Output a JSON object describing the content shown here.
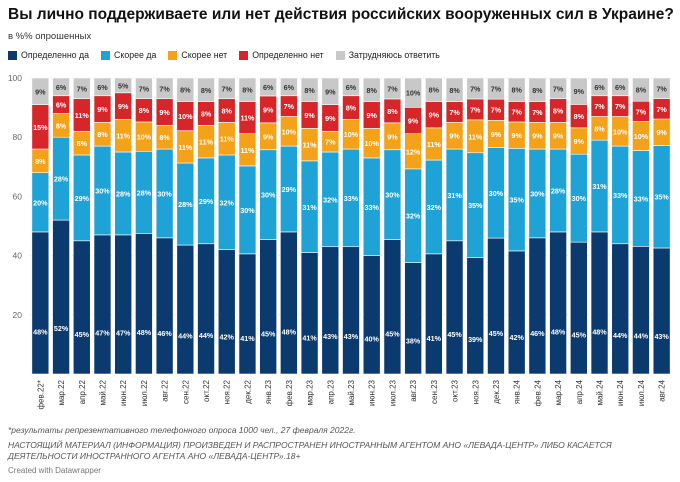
{
  "header": {
    "title": "Вы лично поддерживаете или нет действия российских вооруженных сил в Украине?",
    "subtitle": "в %% опрошенных"
  },
  "legend": [
    {
      "label": "Определенно да",
      "color": "#0b3a6e"
    },
    {
      "label": "Скорее да",
      "color": "#1fa2d6"
    },
    {
      "label": "Скорее нет",
      "color": "#f5a21b"
    },
    {
      "label": "Определенно нет",
      "color": "#d7262a"
    },
    {
      "label": "Затрудняюсь ответить",
      "color": "#c8c8c8"
    }
  ],
  "footer": {
    "note": "*результаты репрезентативного телефонного опроса 1000 чел., 27 февраля 2022г.",
    "disclaimer": "НАСТОЯЩИЙ МАТЕРИАЛ (ИНФОРМАЦИЯ) ПРОИЗВЕДЕН И РАСПРОСТРАНЕН ИНОСТРАННЫМ АГЕНТОМ АНО «ЛЕВАДА-ЦЕНТР» ЛИБО КАСАЕТСЯ ДЕЯТЕЛЬНОСТИ ИНОСТРАННОГО АГЕНТА АНО «ЛЕВАДА-ЦЕНТР».18+",
    "credit": "Created with Datawrapper"
  },
  "chart_data": {
    "type": "bar",
    "stacked": true,
    "ylim": [
      0,
      100
    ],
    "yticks": [
      20,
      40,
      60,
      80,
      100
    ],
    "grid": true,
    "legend_position": "top-left",
    "categories": [
      "фев.22*",
      "мар.22",
      "апр.22",
      "май.22",
      "июн.22",
      "июл.22",
      "авг.22",
      "сен.22",
      "окт.22",
      "ноя.22",
      "дек.22",
      "янв.23",
      "фев.23",
      "мар.23",
      "апр.23",
      "май.23",
      "июн.23",
      "июл.23",
      "авг.23",
      "сен.23",
      "окт.23",
      "ноя.23",
      "дек.23",
      "янв.24",
      "фев.24",
      "мар.24",
      "апр.24",
      "май.24",
      "июн.24",
      "июл.24",
      "авг.24"
    ],
    "series": [
      {
        "name": "Определенно да",
        "color": "#0b3a6e",
        "values": [
          48,
          52,
          45,
          47,
          47,
          48,
          46,
          44,
          44,
          42,
          41,
          45,
          48,
          41,
          43,
          43,
          40,
          45,
          38,
          41,
          45,
          39,
          45,
          42,
          46,
          48,
          45,
          48,
          44,
          44,
          43
        ]
      },
      {
        "name": "Скорее да",
        "color": "#1fa2d6",
        "values": [
          20,
          28,
          29,
          30,
          28,
          28,
          30,
          28,
          29,
          32,
          30,
          30,
          29,
          31,
          32,
          33,
          33,
          30,
          32,
          32,
          31,
          35,
          30,
          35,
          30,
          28,
          30,
          31,
          33,
          33,
          35
        ]
      },
      {
        "name": "Скорее нет",
        "color": "#f5a21b",
        "values": [
          8,
          8,
          8,
          8,
          11,
          10,
          8,
          11,
          11,
          11,
          11,
          9,
          10,
          11,
          7,
          10,
          10,
          9,
          12,
          11,
          9,
          11,
          9,
          9,
          9,
          9,
          9,
          8,
          10,
          10,
          9
        ]
      },
      {
        "name": "Определенно нет",
        "color": "#d7262a",
        "values": [
          15,
          6,
          11,
          9,
          9,
          8,
          9,
          10,
          8,
          8,
          11,
          9,
          7,
          9,
          9,
          8,
          9,
          8,
          9,
          9,
          7,
          7,
          7,
          7,
          7,
          8,
          8,
          7,
          7,
          7,
          7
        ]
      },
      {
        "name": "Затрудняюсь ответить",
        "color": "#c8c8c8",
        "values": [
          9,
          6,
          7,
          6,
          5,
          7,
          7,
          8,
          8,
          7,
          8,
          6,
          6,
          8,
          9,
          6,
          8,
          7,
          10,
          8,
          8,
          7,
          7,
          8,
          8,
          7,
          9,
          6,
          6,
          8,
          7
        ]
      }
    ]
  }
}
